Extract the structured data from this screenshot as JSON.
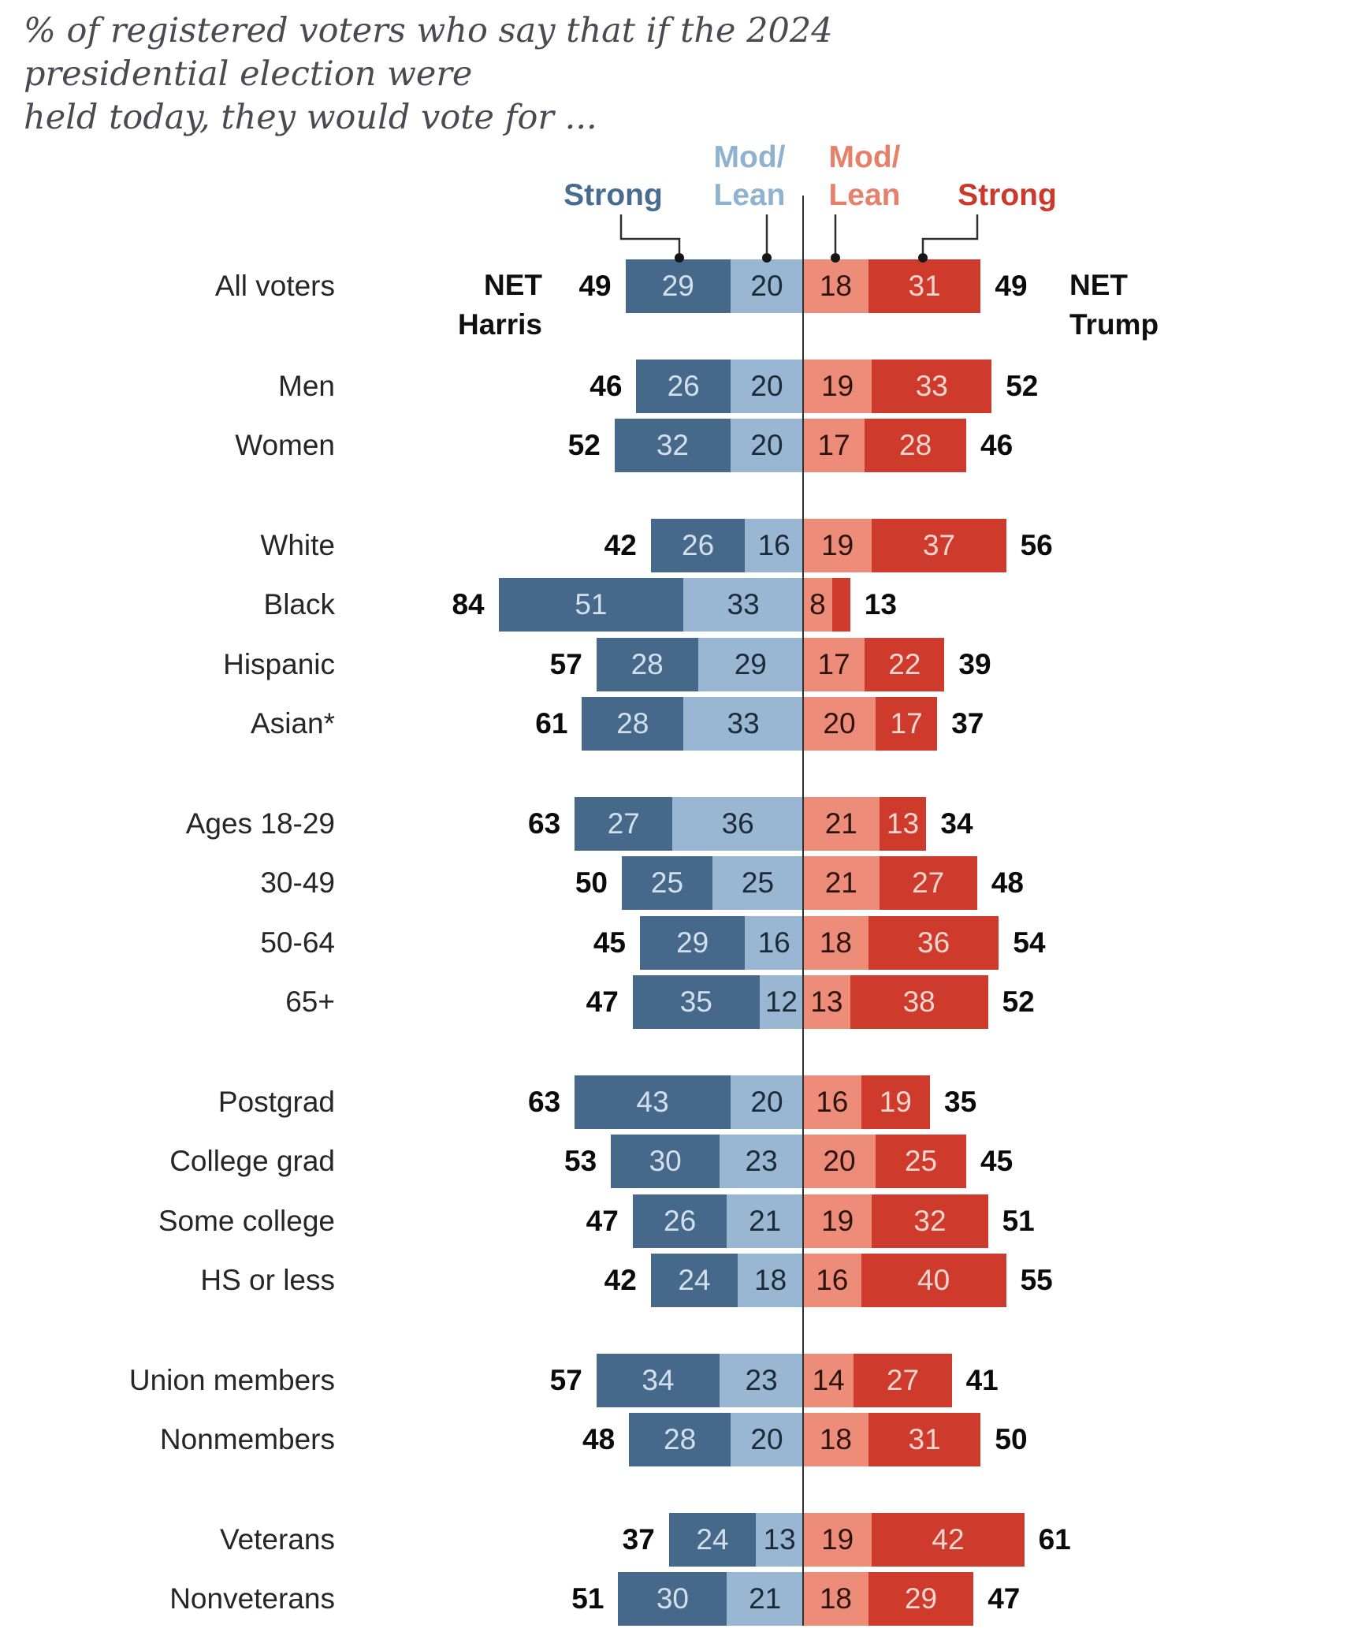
{
  "title": "% of registered voters who say that if the 2024 presidential election were\nheld today, they would vote for ...",
  "legend": {
    "strong": "Strong",
    "mod": "Mod/",
    "lean": "Lean"
  },
  "net_labels": {
    "net": "NET",
    "harris": "Harris",
    "trump": "Trump"
  },
  "colors": {
    "strong_harris": "#46688B",
    "lean_harris": "#99B7D2",
    "lean_trump": "#ED8D79",
    "strong_trump": "#CE3B2C",
    "label_on_strong_harris": "#D3E0EC",
    "label_on_lean_harris": "#1C2B38",
    "label_on_lean_trump": "#2E130D",
    "label_on_strong_trump": "#F4D6CF",
    "legend_strong_harris": "#476C90",
    "legend_lean_harris": "#8FB2CE",
    "legend_lean_trump": "#E5816B",
    "legend_strong_trump": "#CC392A",
    "axis_line": "#2f2f2f",
    "net_text": "#0a0a0a"
  },
  "chart_data": {
    "type": "bar",
    "variant": "diverging-stacked",
    "unit": "% of registered voters",
    "series": [
      "Strong Harris",
      "Mod/Lean Harris",
      "Mod/Lean Trump",
      "Strong Trump"
    ],
    "center_value": 0,
    "groups": [
      {
        "rows": [
          {
            "label": "All voters",
            "net_harris": 49,
            "values": [
              29,
              20,
              18,
              31
            ],
            "net_trump": 49
          }
        ]
      },
      {
        "rows": [
          {
            "label": "Men",
            "net_harris": 46,
            "values": [
              26,
              20,
              19,
              33
            ],
            "net_trump": 52
          },
          {
            "label": "Women",
            "net_harris": 52,
            "values": [
              32,
              20,
              17,
              28
            ],
            "net_trump": 46
          }
        ]
      },
      {
        "rows": [
          {
            "label": "White",
            "net_harris": 42,
            "values": [
              26,
              16,
              19,
              37
            ],
            "net_trump": 56
          },
          {
            "label": "Black",
            "net_harris": 84,
            "values": [
              51,
              33,
              8,
              5
            ],
            "net_trump": 13,
            "hide_value_labels": [
              3
            ]
          },
          {
            "label": "Hispanic",
            "net_harris": 57,
            "values": [
              28,
              29,
              17,
              22
            ],
            "net_trump": 39
          },
          {
            "label": "Asian*",
            "net_harris": 61,
            "values": [
              28,
              33,
              20,
              17
            ],
            "net_trump": 37
          }
        ]
      },
      {
        "rows": [
          {
            "label": "Ages 18-29",
            "net_harris": 63,
            "values": [
              27,
              36,
              21,
              13
            ],
            "net_trump": 34
          },
          {
            "label": "30-49",
            "net_harris": 50,
            "values": [
              25,
              25,
              21,
              27
            ],
            "net_trump": 48
          },
          {
            "label": "50-64",
            "net_harris": 45,
            "values": [
              29,
              16,
              18,
              36
            ],
            "net_trump": 54
          },
          {
            "label": "65+",
            "net_harris": 47,
            "values": [
              35,
              12,
              13,
              38
            ],
            "net_trump": 52
          }
        ]
      },
      {
        "rows": [
          {
            "label": "Postgrad",
            "net_harris": 63,
            "values": [
              43,
              20,
              16,
              19
            ],
            "net_trump": 35
          },
          {
            "label": "College grad",
            "net_harris": 53,
            "values": [
              30,
              23,
              20,
              25
            ],
            "net_trump": 45
          },
          {
            "label": "Some college",
            "net_harris": 47,
            "values": [
              26,
              21,
              19,
              32
            ],
            "net_trump": 51
          },
          {
            "label": "HS or less",
            "net_harris": 42,
            "values": [
              24,
              18,
              16,
              40
            ],
            "net_trump": 55
          }
        ]
      },
      {
        "rows": [
          {
            "label": "Union members",
            "net_harris": 57,
            "values": [
              34,
              23,
              14,
              27
            ],
            "net_trump": 41
          },
          {
            "label": "Nonmembers",
            "net_harris": 48,
            "values": [
              28,
              20,
              18,
              31
            ],
            "net_trump": 50
          }
        ]
      },
      {
        "rows": [
          {
            "label": "Veterans",
            "net_harris": 37,
            "values": [
              24,
              13,
              19,
              42
            ],
            "net_trump": 61
          },
          {
            "label": "Nonveterans",
            "net_harris": 51,
            "values": [
              30,
              21,
              18,
              29
            ],
            "net_trump": 47
          }
        ]
      }
    ]
  }
}
